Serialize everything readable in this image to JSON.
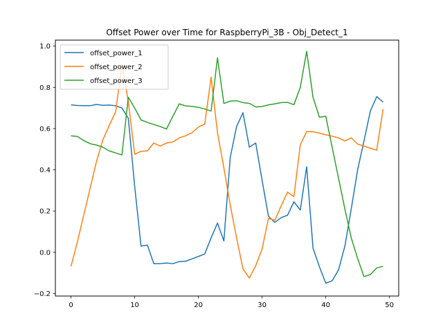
{
  "chart_data": {
    "type": "line",
    "title": "Offset Power over Time for RaspberryPi_3B - Obj_Detect_1",
    "xlabel": "",
    "ylabel": "",
    "xlim": [
      -2.45,
      51.45
    ],
    "ylim": [
      -0.212,
      1.029
    ],
    "xticks": [
      0,
      10,
      20,
      30,
      40,
      50
    ],
    "yticks": [
      -0.2,
      0.0,
      0.2,
      0.4,
      0.6,
      0.8,
      1.0
    ],
    "grid": false,
    "legend_position": "top-left",
    "x": [
      0,
      1,
      2,
      3,
      4,
      5,
      6,
      7,
      8,
      9,
      10,
      11,
      12,
      13,
      14,
      15,
      16,
      17,
      18,
      19,
      20,
      21,
      22,
      23,
      24,
      25,
      26,
      27,
      28,
      29,
      30,
      31,
      32,
      33,
      34,
      35,
      36,
      37,
      38,
      39,
      40,
      41,
      42,
      43,
      44,
      45,
      46,
      47,
      48,
      49
    ],
    "series": [
      {
        "name": "offset_power_1",
        "color": "#1f77b4",
        "values": [
          0.715,
          0.712,
          0.711,
          0.711,
          0.717,
          0.713,
          0.714,
          0.711,
          0.7,
          0.65,
          0.32,
          0.03,
          0.035,
          -0.055,
          -0.055,
          -0.052,
          -0.055,
          -0.045,
          -0.043,
          -0.032,
          -0.02,
          -0.008,
          0.07,
          0.142,
          0.055,
          0.46,
          0.61,
          0.677,
          0.51,
          0.53,
          0.35,
          0.175,
          0.145,
          0.168,
          0.18,
          0.245,
          0.205,
          0.415,
          0.02,
          -0.07,
          -0.15,
          -0.138,
          -0.085,
          0.03,
          0.21,
          0.4,
          0.54,
          0.685,
          0.755,
          0.728
        ]
      },
      {
        "name": "offset_power_2",
        "color": "#ff7f0e",
        "values": [
          -0.068,
          0.05,
          0.18,
          0.31,
          0.44,
          0.545,
          0.615,
          0.68,
          0.91,
          0.73,
          0.475,
          0.49,
          0.492,
          0.53,
          0.515,
          0.53,
          0.535,
          0.555,
          0.565,
          0.58,
          0.608,
          0.622,
          0.85,
          0.58,
          0.41,
          0.23,
          0.07,
          -0.08,
          -0.125,
          -0.065,
          0.015,
          0.165,
          0.155,
          0.225,
          0.292,
          0.27,
          0.522,
          0.585,
          0.585,
          0.578,
          0.57,
          0.563,
          0.555,
          0.54,
          0.555,
          0.525,
          0.515,
          0.505,
          0.495,
          0.695
        ]
      },
      {
        "name": "offset_power_3",
        "color": "#2ca02c",
        "values": [
          0.565,
          0.562,
          0.542,
          0.527,
          0.52,
          0.51,
          0.492,
          0.482,
          0.472,
          0.752,
          0.7,
          0.642,
          0.63,
          0.62,
          0.61,
          0.598,
          0.66,
          0.72,
          0.71,
          0.708,
          0.703,
          0.695,
          0.685,
          0.943,
          0.722,
          0.733,
          0.735,
          0.726,
          0.722,
          0.705,
          0.707,
          0.715,
          0.72,
          0.726,
          0.727,
          0.716,
          0.8,
          0.975,
          0.752,
          0.655,
          0.66,
          0.51,
          0.36,
          0.21,
          0.07,
          -0.03,
          -0.118,
          -0.108,
          -0.076,
          -0.068
        ]
      }
    ]
  }
}
